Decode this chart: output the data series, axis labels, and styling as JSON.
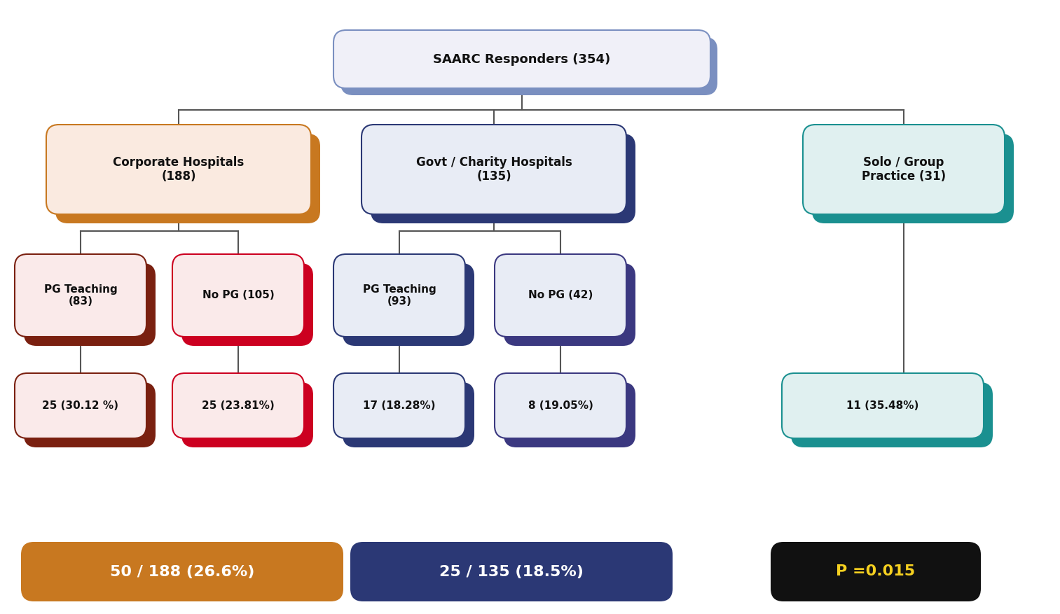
{
  "title": "SAARC Responders (354)",
  "top_box_color": "#7a8fc0",
  "top_box_face": "#f0f0f8",
  "top_text_color": "#111111",
  "corp_shadow_color": "#c87820",
  "corp_box_face": "#faeae0",
  "corp_text": "Corporate Hospitals\n(188)",
  "govt_shadow_color": "#2b3875",
  "govt_box_face": "#e8ecf5",
  "govt_text": "Govt / Charity Hospitals\n(135)",
  "solo_shadow_color": "#1a9090",
  "solo_box_face": "#e0f0f0",
  "solo_text": "Solo / Group\nPractice (31)",
  "corp_pg_shadow": "#7a2010",
  "corp_pg_face": "#faeaea",
  "corp_pg_text": "PG Teaching\n(83)",
  "corp_nopg_shadow": "#cc0020",
  "corp_nopg_face": "#faeaea",
  "corp_nopg_text": "No PG (105)",
  "govt_pg_shadow": "#2b3875",
  "govt_pg_face": "#e8ecf5",
  "govt_pg_text": "PG Teaching\n(93)",
  "govt_nopg_shadow": "#3b3880",
  "govt_nopg_face": "#e8ecf5",
  "govt_nopg_text": "No PG (42)",
  "corp_pg_val_shadow": "#7a2010",
  "corp_pg_val_face": "#faeaea",
  "corp_pg_val_text": "25 (30.12 %)",
  "corp_nopg_val_shadow": "#cc0020",
  "corp_nopg_val_face": "#faeaea",
  "corp_nopg_val_text": "25 (23.81%)",
  "govt_pg_val_shadow": "#2b3875",
  "govt_pg_val_face": "#e8ecf5",
  "govt_pg_val_text": "17 (18.28%)",
  "govt_nopg_val_shadow": "#3b3880",
  "govt_nopg_val_face": "#e8ecf5",
  "govt_nopg_val_text": "8 (19.05%)",
  "solo_val_shadow": "#1a9090",
  "solo_val_face": "#e0f0f0",
  "solo_val_text": "11 (35.48%)",
  "bottom_corp_color": "#c87820",
  "bottom_corp_text": "50 / 188 (26.6%)",
  "bottom_govt_color": "#2b3875",
  "bottom_govt_text": "25 / 135 (18.5%)",
  "bottom_p_color": "#111111",
  "bottom_p_text": "P =0.015",
  "bottom_p_text_color": "#f5d020",
  "line_color": "#555555"
}
